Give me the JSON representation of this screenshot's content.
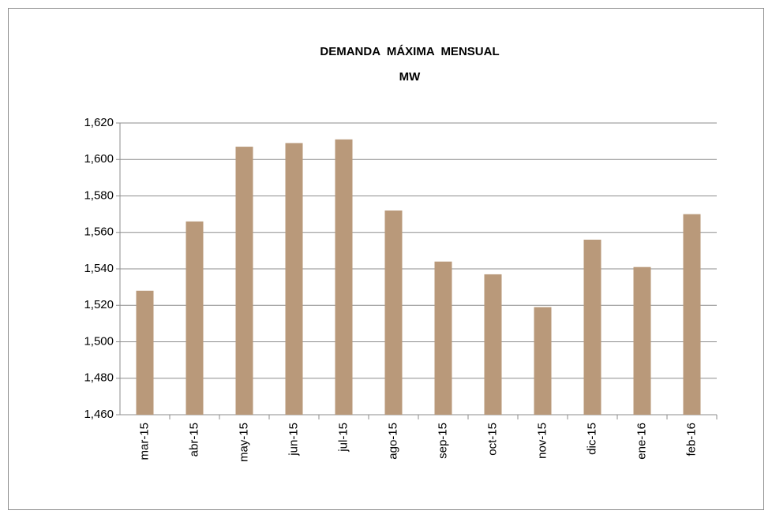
{
  "chart_data": {
    "type": "bar",
    "title": "DEMANDA  MÁXIMA  MENSUAL",
    "subtitle": "MW",
    "categories": [
      "mar-15",
      "abr-15",
      "may-15",
      "jun-15",
      "jul-15",
      "ago-15",
      "sep-15",
      "oct-15",
      "nov-15",
      "dic-15",
      "ene-16",
      "feb-16"
    ],
    "values": [
      1528,
      1566,
      1607,
      1609,
      1611,
      1572,
      1544,
      1537,
      1519,
      1556,
      1541,
      1570
    ],
    "color": "#b9997a",
    "ylim": [
      1460,
      1620
    ],
    "yticks": [
      {
        "value": 1460,
        "label": "1,460"
      },
      {
        "value": 1480,
        "label": "1,480"
      },
      {
        "value": 1500,
        "label": "1,500"
      },
      {
        "value": 1520,
        "label": "1,520"
      },
      {
        "value": 1540,
        "label": "1,540"
      },
      {
        "value": 1560,
        "label": "1,560"
      },
      {
        "value": 1580,
        "label": "1,580"
      },
      {
        "value": 1600,
        "label": "1,600"
      },
      {
        "value": 1620,
        "label": "1,620"
      }
    ],
    "grid": true
  }
}
